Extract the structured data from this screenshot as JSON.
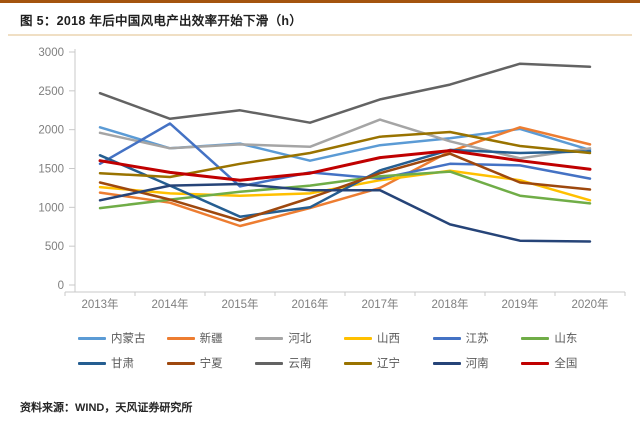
{
  "header": {
    "title": "图 5：2018 年后中国风电产出效率开始下滑（h）"
  },
  "footer": {
    "source": "资料来源：WIND，天风证券研究所"
  },
  "theme": {
    "accent_bar": "#A4540E",
    "divider": "#F0DFC4",
    "axis_color": "#C9C9C9",
    "tick_label_color": "#7F7F7F",
    "legend_label_color": "#595959",
    "background": "#FFFFFF"
  },
  "chart_data": {
    "type": "line",
    "title": "2018 年后中国风电产出效率开始下滑（h）",
    "xlabel": "",
    "ylabel": "",
    "unit": "h",
    "grid": false,
    "legend_position": "bottom",
    "ylim": [
      0,
      3000
    ],
    "yticks": [
      0,
      500,
      1000,
      1500,
      2000,
      2500,
      3000
    ],
    "categories": [
      "2013年",
      "2014年",
      "2015年",
      "2016年",
      "2017年",
      "2018年",
      "2019年",
      "2020年"
    ],
    "series": [
      {
        "name": "内蒙古",
        "color": "#5B9BD5",
        "values": [
          2030,
          1760,
          1820,
          1600,
          1800,
          1890,
          2010,
          1740
        ]
      },
      {
        "name": "新疆",
        "color": "#ED7D31",
        "values": [
          1190,
          1060,
          760,
          990,
          1250,
          1720,
          2030,
          1810
        ]
      },
      {
        "name": "河北",
        "color": "#A5A5A5",
        "values": [
          1960,
          1760,
          1810,
          1780,
          2130,
          1850,
          1630,
          1760
        ]
      },
      {
        "name": "山西",
        "color": "#FFC000",
        "values": [
          1260,
          1180,
          1150,
          1180,
          1350,
          1470,
          1350,
          1090
        ]
      },
      {
        "name": "江苏",
        "color": "#4472C4",
        "values": [
          1560,
          2080,
          1270,
          1450,
          1370,
          1560,
          1540,
          1370
        ]
      },
      {
        "name": "山东",
        "color": "#70AD47",
        "values": [
          990,
          1100,
          1200,
          1280,
          1400,
          1460,
          1150,
          1050
        ]
      },
      {
        "name": "甘肃",
        "color": "#255E91",
        "values": [
          1670,
          1280,
          880,
          1000,
          1475,
          1740,
          1700,
          1720
        ]
      },
      {
        "name": "宁夏",
        "color": "#9E480E",
        "values": [
          1320,
          1100,
          830,
          1120,
          1440,
          1690,
          1320,
          1230
        ]
      },
      {
        "name": "云南",
        "color": "#636363",
        "values": [
          2470,
          2140,
          2250,
          2090,
          2390,
          2580,
          2850,
          2810
        ]
      },
      {
        "name": "辽宁",
        "color": "#997300",
        "values": [
          1440,
          1390,
          1560,
          1700,
          1910,
          1970,
          1790,
          1700
        ]
      },
      {
        "name": "河南",
        "color": "#264478",
        "values": [
          1090,
          1280,
          1300,
          1220,
          1220,
          780,
          570,
          560
        ]
      },
      {
        "name": "全国",
        "color": "#C00000",
        "values": [
          1600,
          1450,
          1350,
          1440,
          1640,
          1730,
          1600,
          1490
        ]
      }
    ]
  }
}
